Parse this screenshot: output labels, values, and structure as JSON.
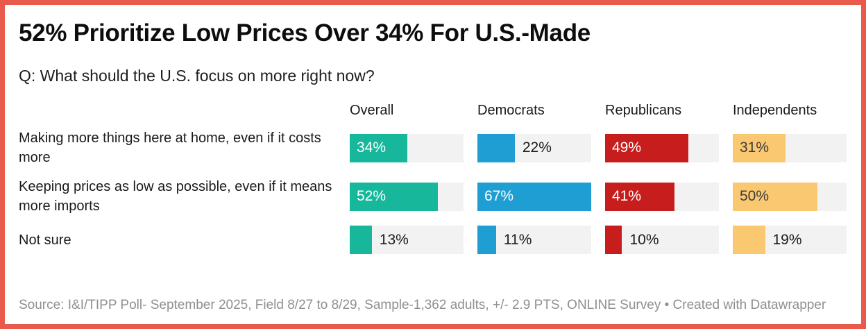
{
  "frame": {
    "border_color": "#e9594c",
    "background_color": "#ffffff"
  },
  "chart_data": {
    "type": "bar",
    "title": "52% Prioritize Low Prices Over 34% For U.S.-Made",
    "subtitle": "Q: What should the U.S. focus on more right now?",
    "categories": [
      "Making more things here at home, even if it costs more",
      "Keeping prices as low as possible, even if it means more imports",
      "Not sure"
    ],
    "series": [
      {
        "name": "Overall",
        "color": "#16b79b",
        "values": [
          34,
          52,
          13
        ]
      },
      {
        "name": "Democrats",
        "color": "#1f9ed3",
        "values": [
          22,
          67,
          11
        ]
      },
      {
        "name": "Republicans",
        "color": "#c71e1d",
        "values": [
          49,
          41,
          10
        ]
      },
      {
        "name": "Independents",
        "color": "#fbc872",
        "values": [
          31,
          50,
          19
        ],
        "dark_inside_label": true
      }
    ],
    "unit": "%",
    "scale_max": 67,
    "inside_label_min_value": 30,
    "track_color": "#f2f2f2",
    "inside_label_light_color": "#ffffff",
    "inside_label_dark_color": "#3b3b3b",
    "outside_label_color": "#1a1a1a",
    "legend_position": "column-headers",
    "grid": "off"
  },
  "footer": {
    "source_text": "Source: I&I/TIPP Poll- September 2025, Field 8/27 to 8/29, Sample-1,362 adults, +/- 2.9 PTS, ONLINE Survey • Created with Datawrapper"
  }
}
